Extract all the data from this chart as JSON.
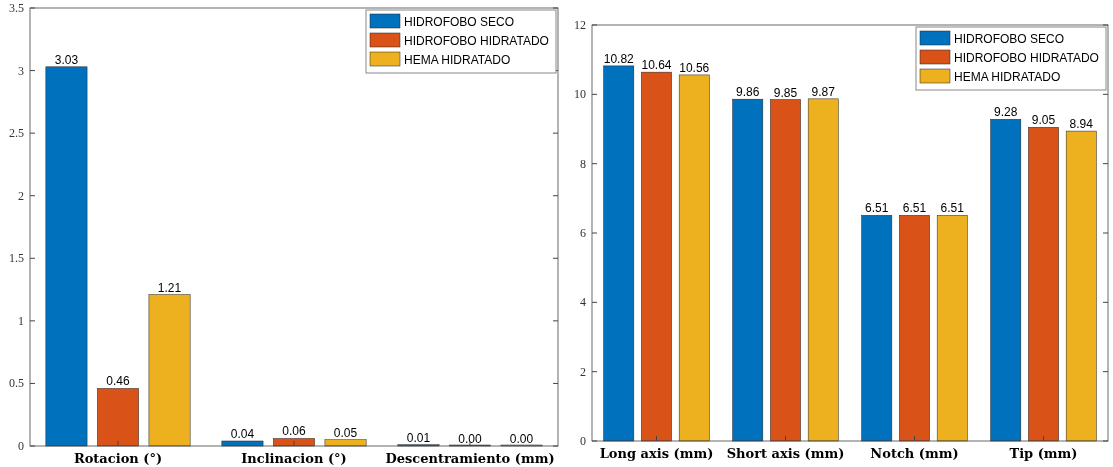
{
  "chart_data": [
    {
      "type": "bar",
      "categories": [
        "Rotacion (°)",
        "Inclinacion (°)",
        "Descentramiento (mm)"
      ],
      "series": [
        {
          "name": "HIDROFOBO SECO",
          "color": "#0072bd",
          "values": [
            3.03,
            0.04,
            0.01
          ],
          "value_labels": [
            "3.03",
            "0.04",
            "0.01"
          ]
        },
        {
          "name": "HIDROFOBO HIDRATADO",
          "color": "#d95319",
          "values": [
            0.46,
            0.06,
            0.0
          ],
          "value_labels": [
            "0.46",
            "0.06",
            "0.00"
          ]
        },
        {
          "name": "HEMA HIDRATADO",
          "color": "#edb120",
          "values": [
            1.21,
            0.05,
            0.0
          ],
          "value_labels": [
            "1.21",
            "0.05",
            "0.00"
          ]
        }
      ],
      "ylim": [
        0,
        3.5
      ],
      "yticks": [
        0,
        0.5,
        1,
        1.5,
        2,
        2.5,
        3,
        3.5
      ],
      "legend": "top right"
    },
    {
      "type": "bar",
      "categories": [
        "Long axis (mm)",
        "Short axis (mm)",
        "Notch (mm)",
        "Tip (mm)"
      ],
      "series": [
        {
          "name": "HIDROFOBO SECO",
          "color": "#0072bd",
          "values": [
            10.82,
            9.86,
            6.51,
            9.28
          ],
          "value_labels": [
            "10.82",
            "9.86",
            "6.51",
            "9.28"
          ]
        },
        {
          "name": "HIDROFOBO HIDRATADO",
          "color": "#d95319",
          "values": [
            10.64,
            9.85,
            6.51,
            9.05
          ],
          "value_labels": [
            "10.64",
            "9.85",
            "6.51",
            "9.05"
          ]
        },
        {
          "name": "HEMA HIDRATADO",
          "color": "#edb120",
          "values": [
            10.56,
            9.87,
            6.51,
            8.94
          ],
          "value_labels": [
            "10.56",
            "9.87",
            "6.51",
            "8.94"
          ]
        }
      ],
      "ylim": [
        0,
        12
      ],
      "yticks": [
        0,
        2,
        4,
        6,
        8,
        10,
        12
      ],
      "legend": "top right"
    }
  ]
}
